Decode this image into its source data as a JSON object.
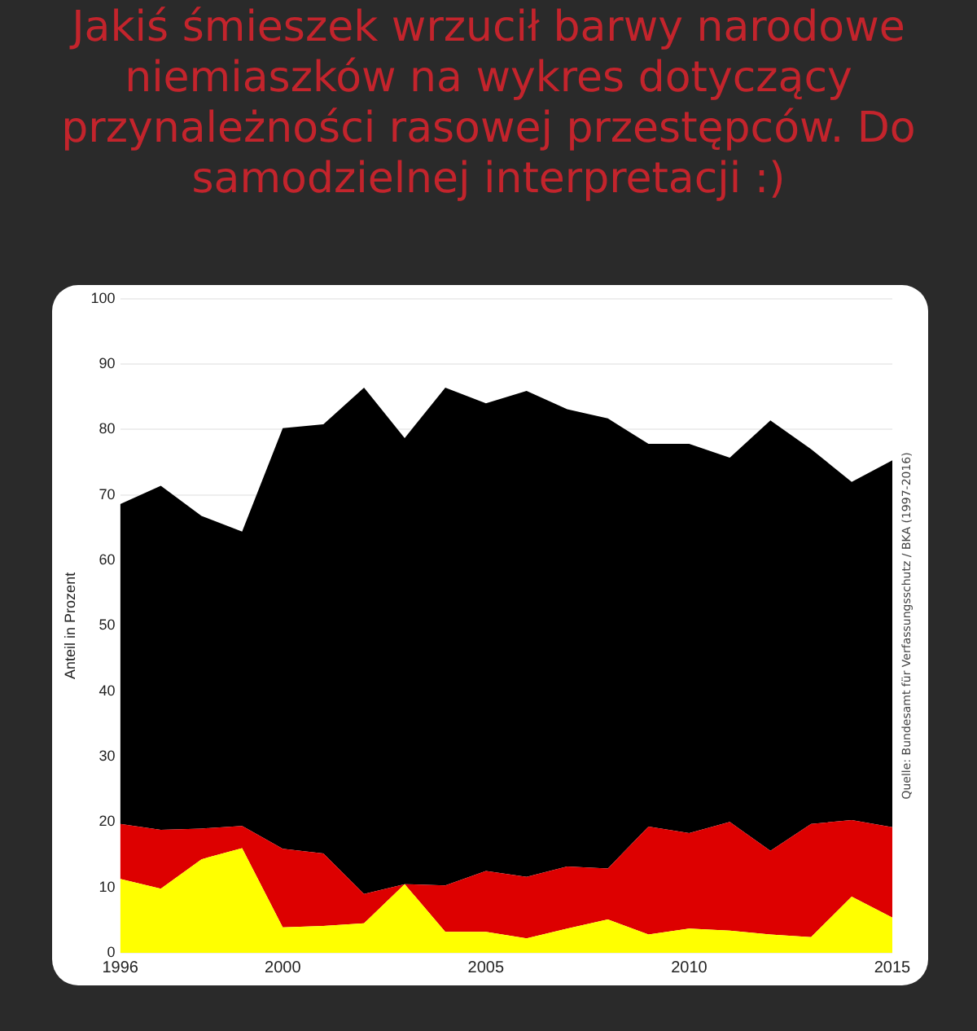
{
  "chart_data": {
    "type": "area",
    "title": "Jakiś śmieszek wrzucił barwy narodowe niemiaszków na wykres dotyczący przynależności rasowej przestępców. Do samodzielnej interpretacji :)",
    "ylabel": "Anteil in Prozent",
    "annotations": [
      "Quelle: Bundesamt für Verfassungsschutz / BKA (1997-2016)"
    ],
    "x": [
      1996,
      1997,
      1998,
      1999,
      2000,
      2001,
      2002,
      2003,
      2004,
      2005,
      2006,
      2007,
      2008,
      2009,
      2010,
      2011,
      2012,
      2013,
      2014,
      2015
    ],
    "stacked": true,
    "series": [
      {
        "color": "#ffff00",
        "values": [
          11.3,
          9.8,
          14.3,
          16.0,
          3.9,
          4.1,
          4.5,
          10.5,
          3.2,
          3.2,
          2.2,
          3.7,
          5.1,
          2.8,
          3.7,
          3.4,
          2.8,
          2.4,
          8.6,
          5.4
        ]
      },
      {
        "color": "#dd0000",
        "values": [
          8.4,
          9.0,
          4.7,
          3.4,
          12.0,
          11.1,
          4.5,
          0.0,
          7.1,
          9.3,
          9.4,
          9.5,
          7.8,
          16.5,
          14.6,
          16.6,
          12.8,
          17.3,
          11.7,
          13.8
        ]
      },
      {
        "color": "#000000",
        "values": [
          48.9,
          52.6,
          47.8,
          45.0,
          64.3,
          65.6,
          77.4,
          68.2,
          76.1,
          71.5,
          74.3,
          69.9,
          68.8,
          58.5,
          59.5,
          55.7,
          65.8,
          57.3,
          51.7,
          56.1
        ]
      }
    ],
    "xlim": [
      1996,
      2015
    ],
    "xticks": [
      1996,
      2000,
      2005,
      2010,
      2015
    ],
    "ylim": [
      0,
      100
    ],
    "yticks": [
      0,
      10,
      20,
      30,
      40,
      50,
      60,
      70,
      80,
      90,
      100
    ],
    "grid": "y",
    "legend": false
  }
}
